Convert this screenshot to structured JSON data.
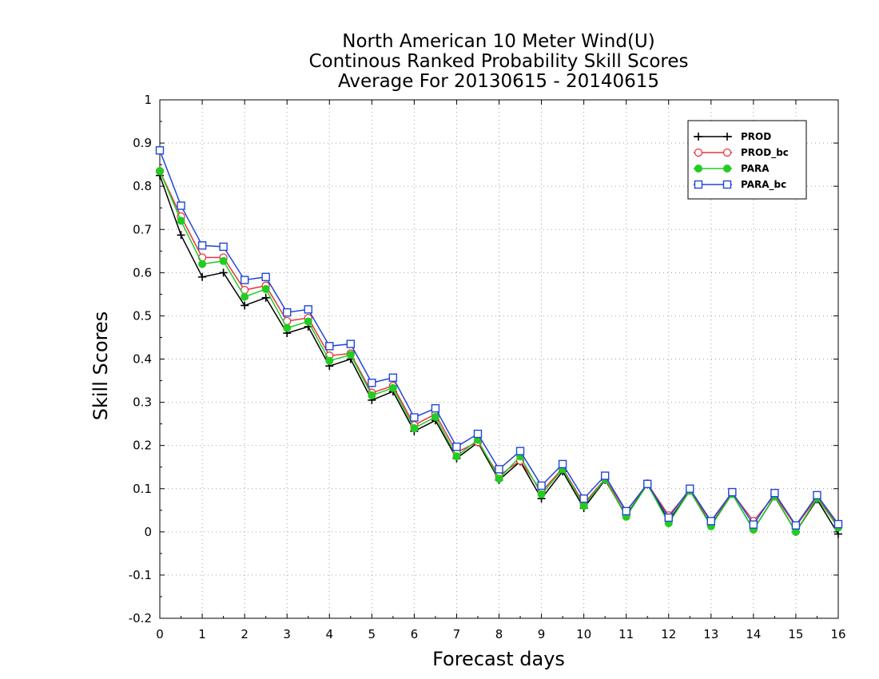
{
  "chart_data": {
    "type": "line",
    "title_lines": [
      "North American 10 Meter Wind(U)",
      "Continous Ranked Probability Skill Scores",
      "Average For 20130615 - 20140615"
    ],
    "xlabel": "Forecast days",
    "ylabel": "Skill Scores",
    "xlim": [
      0,
      16
    ],
    "ylim": [
      -0.2,
      1
    ],
    "xticks": [
      0,
      1,
      2,
      3,
      4,
      5,
      6,
      7,
      8,
      9,
      10,
      11,
      12,
      13,
      14,
      15,
      16
    ],
    "yticks": [
      -0.2,
      -0.1,
      0,
      0.1,
      0.2,
      0.3,
      0.4,
      0.5,
      0.6,
      0.7,
      0.8,
      0.9,
      1
    ],
    "ytick_labels": [
      "-0.2",
      "-0.1",
      "0",
      "0.1",
      "0.2",
      "0.3",
      "0.4",
      "0.5",
      "0.6",
      "0.7",
      "0.8",
      "0.9",
      "1"
    ],
    "grid": true,
    "legend_position": "top-right",
    "x": [
      0,
      0.5,
      1,
      1.5,
      2,
      2.5,
      3,
      3.5,
      4,
      4.5,
      5,
      5.5,
      6,
      6.5,
      7,
      7.5,
      8,
      8.5,
      9,
      9.5,
      10,
      10.5,
      11,
      11.5,
      12,
      12.5,
      13,
      13.5,
      14,
      14.5,
      15,
      15.5,
      16
    ],
    "series": [
      {
        "name": "PROD",
        "color": "#000000",
        "marker": "plus",
        "values": [
          0.825,
          0.687,
          0.59,
          0.6,
          0.524,
          0.542,
          0.46,
          0.475,
          0.384,
          0.4,
          0.305,
          0.325,
          0.233,
          0.258,
          0.17,
          0.207,
          0.12,
          0.163,
          0.077,
          0.14,
          0.055,
          0.12,
          0.038,
          0.11,
          0.025,
          0.095,
          0.015,
          0.088,
          0.005,
          0.082,
          0.0,
          0.075,
          -0.005
        ]
      },
      {
        "name": "PROD_bc",
        "color": "#e8343f",
        "marker": "circle-open",
        "values": [
          0.835,
          0.73,
          0.635,
          0.635,
          0.56,
          0.57,
          0.488,
          0.495,
          0.408,
          0.413,
          0.322,
          0.338,
          0.247,
          0.273,
          0.184,
          0.208,
          0.13,
          0.165,
          0.093,
          0.147,
          0.065,
          0.123,
          0.047,
          0.112,
          0.038,
          0.097,
          0.023,
          0.09,
          0.025,
          0.085,
          0.013,
          0.08,
          0.015
        ]
      },
      {
        "name": "PARA",
        "color": "#22cc22",
        "marker": "circle-filled",
        "values": [
          0.835,
          0.72,
          0.62,
          0.627,
          0.544,
          0.562,
          0.472,
          0.487,
          0.396,
          0.41,
          0.316,
          0.333,
          0.24,
          0.266,
          0.175,
          0.213,
          0.123,
          0.175,
          0.087,
          0.145,
          0.06,
          0.122,
          0.035,
          0.11,
          0.02,
          0.095,
          0.013,
          0.088,
          0.005,
          0.083,
          0.0,
          0.078,
          0.01
        ]
      },
      {
        "name": "PARA_bc",
        "color": "#2146d8",
        "marker": "square-open",
        "values": [
          0.883,
          0.755,
          0.663,
          0.66,
          0.583,
          0.59,
          0.508,
          0.515,
          0.43,
          0.435,
          0.345,
          0.357,
          0.265,
          0.286,
          0.197,
          0.227,
          0.145,
          0.187,
          0.107,
          0.157,
          0.077,
          0.13,
          0.048,
          0.111,
          0.033,
          0.1,
          0.025,
          0.092,
          0.017,
          0.09,
          0.015,
          0.085,
          0.018
        ]
      }
    ]
  }
}
